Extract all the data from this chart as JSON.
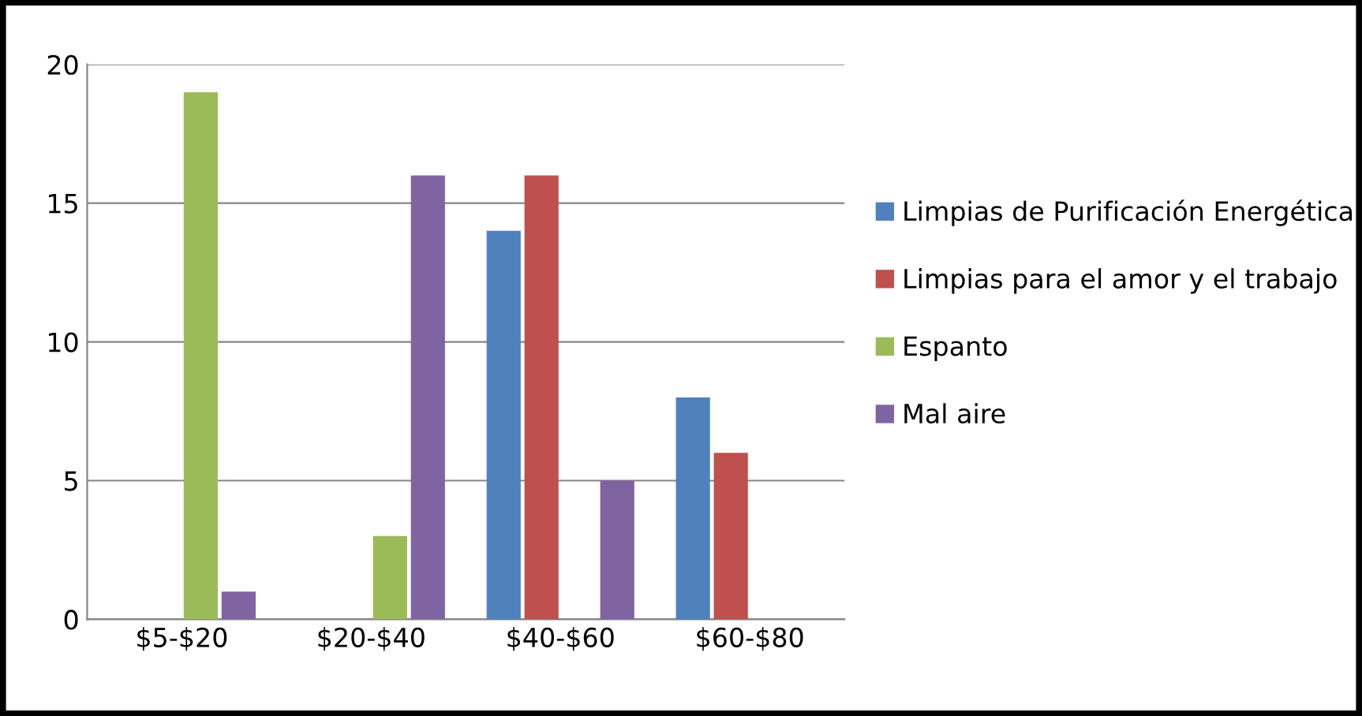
{
  "chart_data": {
    "type": "bar",
    "categories": [
      "$5-$20",
      "$20-$40",
      "$40-$60",
      "$60-$80"
    ],
    "series": [
      {
        "name": "Limpias de Purificación Energética",
        "color": "#4f81bd",
        "values": [
          0,
          0,
          14,
          8
        ]
      },
      {
        "name": "Limpias para el amor y el trabajo",
        "color": "#c0504d",
        "values": [
          0,
          0,
          16,
          6
        ]
      },
      {
        "name": "Espanto",
        "color": "#9bbb59",
        "values": [
          19,
          3,
          0,
          0
        ]
      },
      {
        "name": "Mal aire",
        "color": "#8064a2",
        "values": [
          1,
          16,
          5,
          0
        ]
      }
    ],
    "ylim": [
      0,
      20
    ],
    "yticks": [
      0,
      5,
      10,
      15,
      20
    ],
    "grid": "y",
    "legend": "right"
  }
}
